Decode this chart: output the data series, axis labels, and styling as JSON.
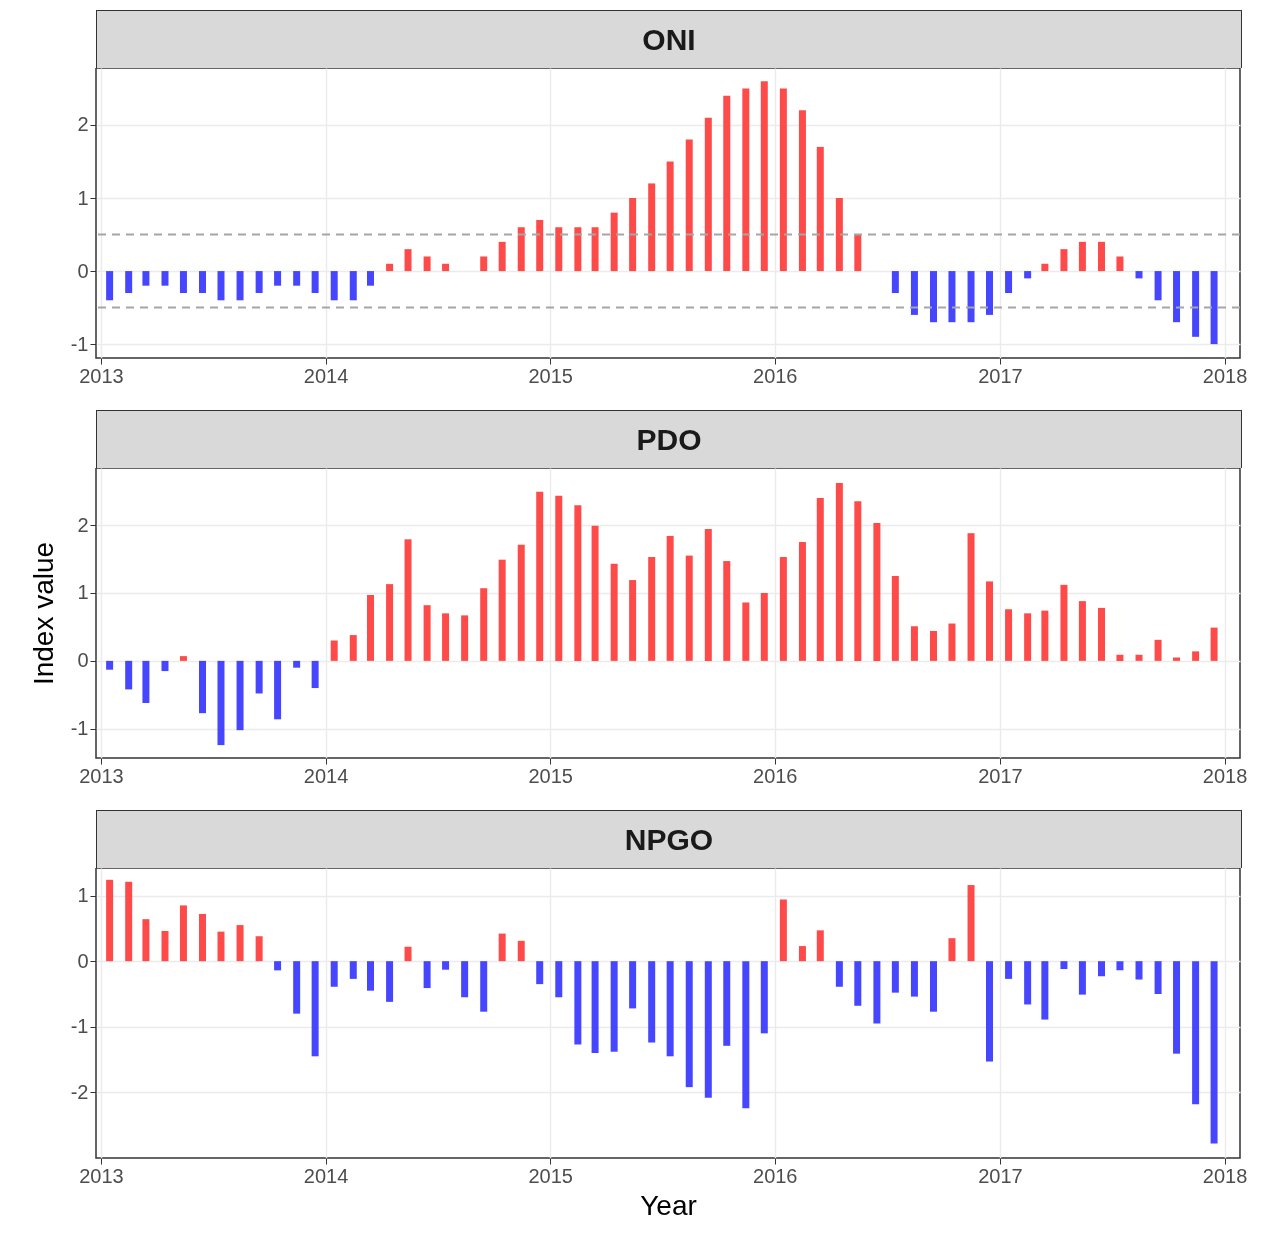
{
  "chart_data": [
    {
      "type": "bar",
      "title": "ONI",
      "x": [
        "2013-01-15",
        "2013-02-15",
        "2013-03-15",
        "2013-04-15",
        "2013-05-15",
        "2013-06-15",
        "2013-07-15",
        "2013-08-15",
        "2013-09-15",
        "2013-10-15",
        "2013-11-15",
        "2013-12-15",
        "2014-01-15",
        "2014-02-15",
        "2014-03-15",
        "2014-04-15",
        "2014-05-15",
        "2014-06-15",
        "2014-07-15",
        "2014-08-15",
        "2014-09-15",
        "2014-10-15",
        "2014-11-15",
        "2014-12-15",
        "2015-01-15",
        "2015-02-15",
        "2015-03-15",
        "2015-04-15",
        "2015-05-15",
        "2015-06-15",
        "2015-07-15",
        "2015-08-15",
        "2015-09-15",
        "2015-10-15",
        "2015-11-15",
        "2015-12-15",
        "2016-01-15",
        "2016-02-15",
        "2016-03-15",
        "2016-04-15",
        "2016-05-15",
        "2016-06-15",
        "2016-07-15",
        "2016-08-15",
        "2016-09-15",
        "2016-10-15",
        "2016-11-15",
        "2016-12-15",
        "2017-01-15",
        "2017-02-15",
        "2017-03-15",
        "2017-04-15",
        "2017-05-15",
        "2017-06-15",
        "2017-07-15",
        "2017-08-15",
        "2017-09-15",
        "2017-10-15",
        "2017-11-15",
        "2017-12-15"
      ],
      "series": [
        {
          "color": "#ff4a4a",
          "values": [
            null,
            null,
            null,
            null,
            null,
            null,
            null,
            null,
            null,
            null,
            null,
            null,
            null,
            null,
            null,
            0.1,
            0.3,
            0.2,
            0.1,
            0,
            0.2,
            0.4,
            0.6,
            0.7,
            0.6,
            0.6,
            0.6,
            0.8,
            1.0,
            1.2,
            1.5,
            1.8,
            2.1,
            2.4,
            2.5,
            2.6,
            2.5,
            2.2,
            1.7,
            1.0,
            0.5,
            0,
            null,
            null,
            null,
            null,
            null,
            null,
            null,
            null,
            0.1,
            0.3,
            0.4,
            0.4,
            0.2,
            null,
            null,
            null,
            null,
            null
          ]
        },
        {
          "color": "#4646ff",
          "values": [
            -0.4,
            -0.3,
            -0.2,
            -0.2,
            -0.3,
            -0.3,
            -0.4,
            -0.4,
            -0.3,
            -0.2,
            -0.2,
            -0.3,
            -0.4,
            -0.4,
            -0.2,
            null,
            null,
            null,
            null,
            null,
            null,
            null,
            null,
            null,
            null,
            null,
            null,
            null,
            null,
            null,
            null,
            null,
            null,
            null,
            null,
            null,
            null,
            null,
            null,
            null,
            null,
            null,
            -0.3,
            -0.6,
            -0.7,
            -0.7,
            -0.7,
            -0.6,
            -0.3,
            -0.1,
            null,
            null,
            null,
            null,
            null,
            -0.1,
            -0.4,
            -0.7,
            -0.9,
            -1.0
          ]
        }
      ],
      "xlim": [
        "2013-01-01",
        "2018-01-18"
      ],
      "xticks": [
        "2013",
        "2014",
        "2015",
        "2016",
        "2017",
        "2018"
      ],
      "ylim": [
        -1.19,
        2.78
      ],
      "yticks": [
        -1,
        0,
        1,
        2
      ],
      "grid": true,
      "ref_lines": [
        {
          "axis": "y",
          "value": 0.5,
          "color": "#a6a6a6",
          "line_style": "dashed"
        },
        {
          "axis": "y",
          "value": -0.5,
          "color": "#a6a6a6",
          "line_style": "dashed"
        }
      ]
    },
    {
      "type": "bar",
      "title": "PDO",
      "ylabel": "Index value",
      "x": [
        "2013-01-15",
        "2013-02-15",
        "2013-03-15",
        "2013-04-15",
        "2013-05-15",
        "2013-06-15",
        "2013-07-15",
        "2013-08-15",
        "2013-09-15",
        "2013-10-15",
        "2013-11-15",
        "2013-12-15",
        "2014-01-15",
        "2014-02-15",
        "2014-03-15",
        "2014-04-15",
        "2014-05-15",
        "2014-06-15",
        "2014-07-15",
        "2014-08-15",
        "2014-09-15",
        "2014-10-15",
        "2014-11-15",
        "2014-12-15",
        "2015-01-15",
        "2015-02-15",
        "2015-03-15",
        "2015-04-15",
        "2015-05-15",
        "2015-06-15",
        "2015-07-15",
        "2015-08-15",
        "2015-09-15",
        "2015-10-15",
        "2015-11-15",
        "2015-12-15",
        "2016-01-15",
        "2016-02-15",
        "2016-03-15",
        "2016-04-15",
        "2016-05-15",
        "2016-06-15",
        "2016-07-15",
        "2016-08-15",
        "2016-09-15",
        "2016-10-15",
        "2016-11-15",
        "2016-12-15",
        "2017-01-15",
        "2017-02-15",
        "2017-03-15",
        "2017-04-15",
        "2017-05-15",
        "2017-06-15",
        "2017-07-15",
        "2017-08-15",
        "2017-09-15",
        "2017-10-15",
        "2017-11-15",
        "2017-12-15"
      ],
      "series": [
        {
          "color": "#ff4a4a",
          "values": [
            null,
            null,
            null,
            null,
            0.07,
            null,
            null,
            null,
            null,
            null,
            null,
            null,
            0.3,
            0.38,
            0.97,
            1.13,
            1.79,
            0.82,
            0.7,
            0.67,
            1.07,
            1.49,
            1.71,
            2.49,
            2.43,
            2.29,
            1.99,
            1.43,
            1.19,
            1.53,
            1.84,
            1.55,
            1.94,
            1.47,
            0.86,
            1.0,
            1.53,
            1.75,
            2.4,
            2.62,
            2.35,
            2.03,
            1.25,
            0.51,
            0.44,
            0.55,
            1.88,
            1.17,
            0.76,
            0.7,
            0.74,
            1.12,
            0.88,
            0.78,
            0.09,
            0.09,
            0.31,
            0.05,
            0.14,
            0.49
          ]
        },
        {
          "color": "#4646ff",
          "values": [
            -0.13,
            -0.42,
            -0.62,
            -0.15,
            null,
            -0.77,
            -1.24,
            -1.02,
            -0.48,
            -0.86,
            -0.1,
            -0.4,
            null,
            null,
            null,
            null,
            null,
            null,
            null,
            null,
            null,
            null,
            null,
            null,
            null,
            null,
            null,
            null,
            null,
            null,
            null,
            null,
            null,
            null,
            null,
            null,
            null,
            null,
            null,
            null,
            null,
            null,
            null,
            null,
            null,
            null,
            null,
            null,
            null,
            null,
            null,
            null,
            null,
            null,
            null,
            null,
            null,
            null,
            null,
            null
          ]
        }
      ],
      "xlim": [
        "2013-01-01",
        "2018-01-18"
      ],
      "xticks": [
        "2013",
        "2014",
        "2015",
        "2016",
        "2017",
        "2018"
      ],
      "ylim": [
        -1.43,
        2.84
      ],
      "yticks": [
        -1,
        0,
        1,
        2
      ],
      "grid": true
    },
    {
      "type": "bar",
      "title": "NPGO",
      "xlabel": "Year",
      "x": [
        "2013-01-15",
        "2013-02-15",
        "2013-03-15",
        "2013-04-15",
        "2013-05-15",
        "2013-06-15",
        "2013-07-15",
        "2013-08-15",
        "2013-09-15",
        "2013-10-15",
        "2013-11-15",
        "2013-12-15",
        "2014-01-15",
        "2014-02-15",
        "2014-03-15",
        "2014-04-15",
        "2014-05-15",
        "2014-06-15",
        "2014-07-15",
        "2014-08-15",
        "2014-09-15",
        "2014-10-15",
        "2014-11-15",
        "2014-12-15",
        "2015-01-15",
        "2015-02-15",
        "2015-03-15",
        "2015-04-15",
        "2015-05-15",
        "2015-06-15",
        "2015-07-15",
        "2015-08-15",
        "2015-09-15",
        "2015-10-15",
        "2015-11-15",
        "2015-12-15",
        "2016-01-15",
        "2016-02-15",
        "2016-03-15",
        "2016-04-15",
        "2016-05-15",
        "2016-06-15",
        "2016-07-15",
        "2016-08-15",
        "2016-09-15",
        "2016-10-15",
        "2016-11-15",
        "2016-12-15",
        "2017-01-15",
        "2017-02-15",
        "2017-03-15",
        "2017-04-15",
        "2017-05-15",
        "2017-06-15",
        "2017-07-15",
        "2017-08-15",
        "2017-09-15",
        "2017-10-15",
        "2017-11-15",
        "2017-12-15"
      ],
      "series": [
        {
          "color": "#ff4a4a",
          "values": [
            1.24,
            1.21,
            0.64,
            0.46,
            0.85,
            0.72,
            0.45,
            0.55,
            0.38,
            null,
            null,
            null,
            null,
            null,
            null,
            null,
            0.22,
            null,
            null,
            null,
            null,
            0.42,
            0.31,
            null,
            null,
            null,
            null,
            null,
            null,
            null,
            null,
            null,
            null,
            null,
            null,
            null,
            0.94,
            0.23,
            0.47,
            null,
            null,
            null,
            null,
            null,
            null,
            0.35,
            1.16,
            null,
            null,
            null,
            null,
            null,
            null,
            null,
            null,
            null,
            null,
            null,
            null,
            null
          ]
        },
        {
          "color": "#4646ff",
          "values": [
            null,
            null,
            null,
            null,
            null,
            null,
            null,
            null,
            null,
            -0.14,
            -0.8,
            -1.45,
            -0.39,
            -0.27,
            -0.45,
            -0.62,
            null,
            -0.41,
            -0.13,
            -0.55,
            -0.77,
            null,
            null,
            -0.35,
            -0.55,
            -1.27,
            -1.4,
            -1.38,
            -0.72,
            -1.24,
            -1.45,
            -1.92,
            -2.08,
            -1.29,
            -2.24,
            -1.1,
            null,
            null,
            null,
            -0.39,
            -0.68,
            -0.95,
            -0.48,
            -0.54,
            -0.77,
            null,
            null,
            -1.53,
            -0.27,
            -0.66,
            -0.89,
            -0.12,
            -0.51,
            -0.23,
            -0.14,
            -0.28,
            -0.5,
            -1.41,
            -2.18,
            -2.78
          ]
        }
      ],
      "xlim": [
        "2013-01-01",
        "2018-01-18"
      ],
      "xticks": [
        "2013",
        "2014",
        "2015",
        "2016",
        "2017",
        "2018"
      ],
      "ylim": [
        -3.0,
        1.42
      ],
      "yticks": [
        -2,
        -1,
        0,
        1
      ],
      "grid": true
    }
  ]
}
